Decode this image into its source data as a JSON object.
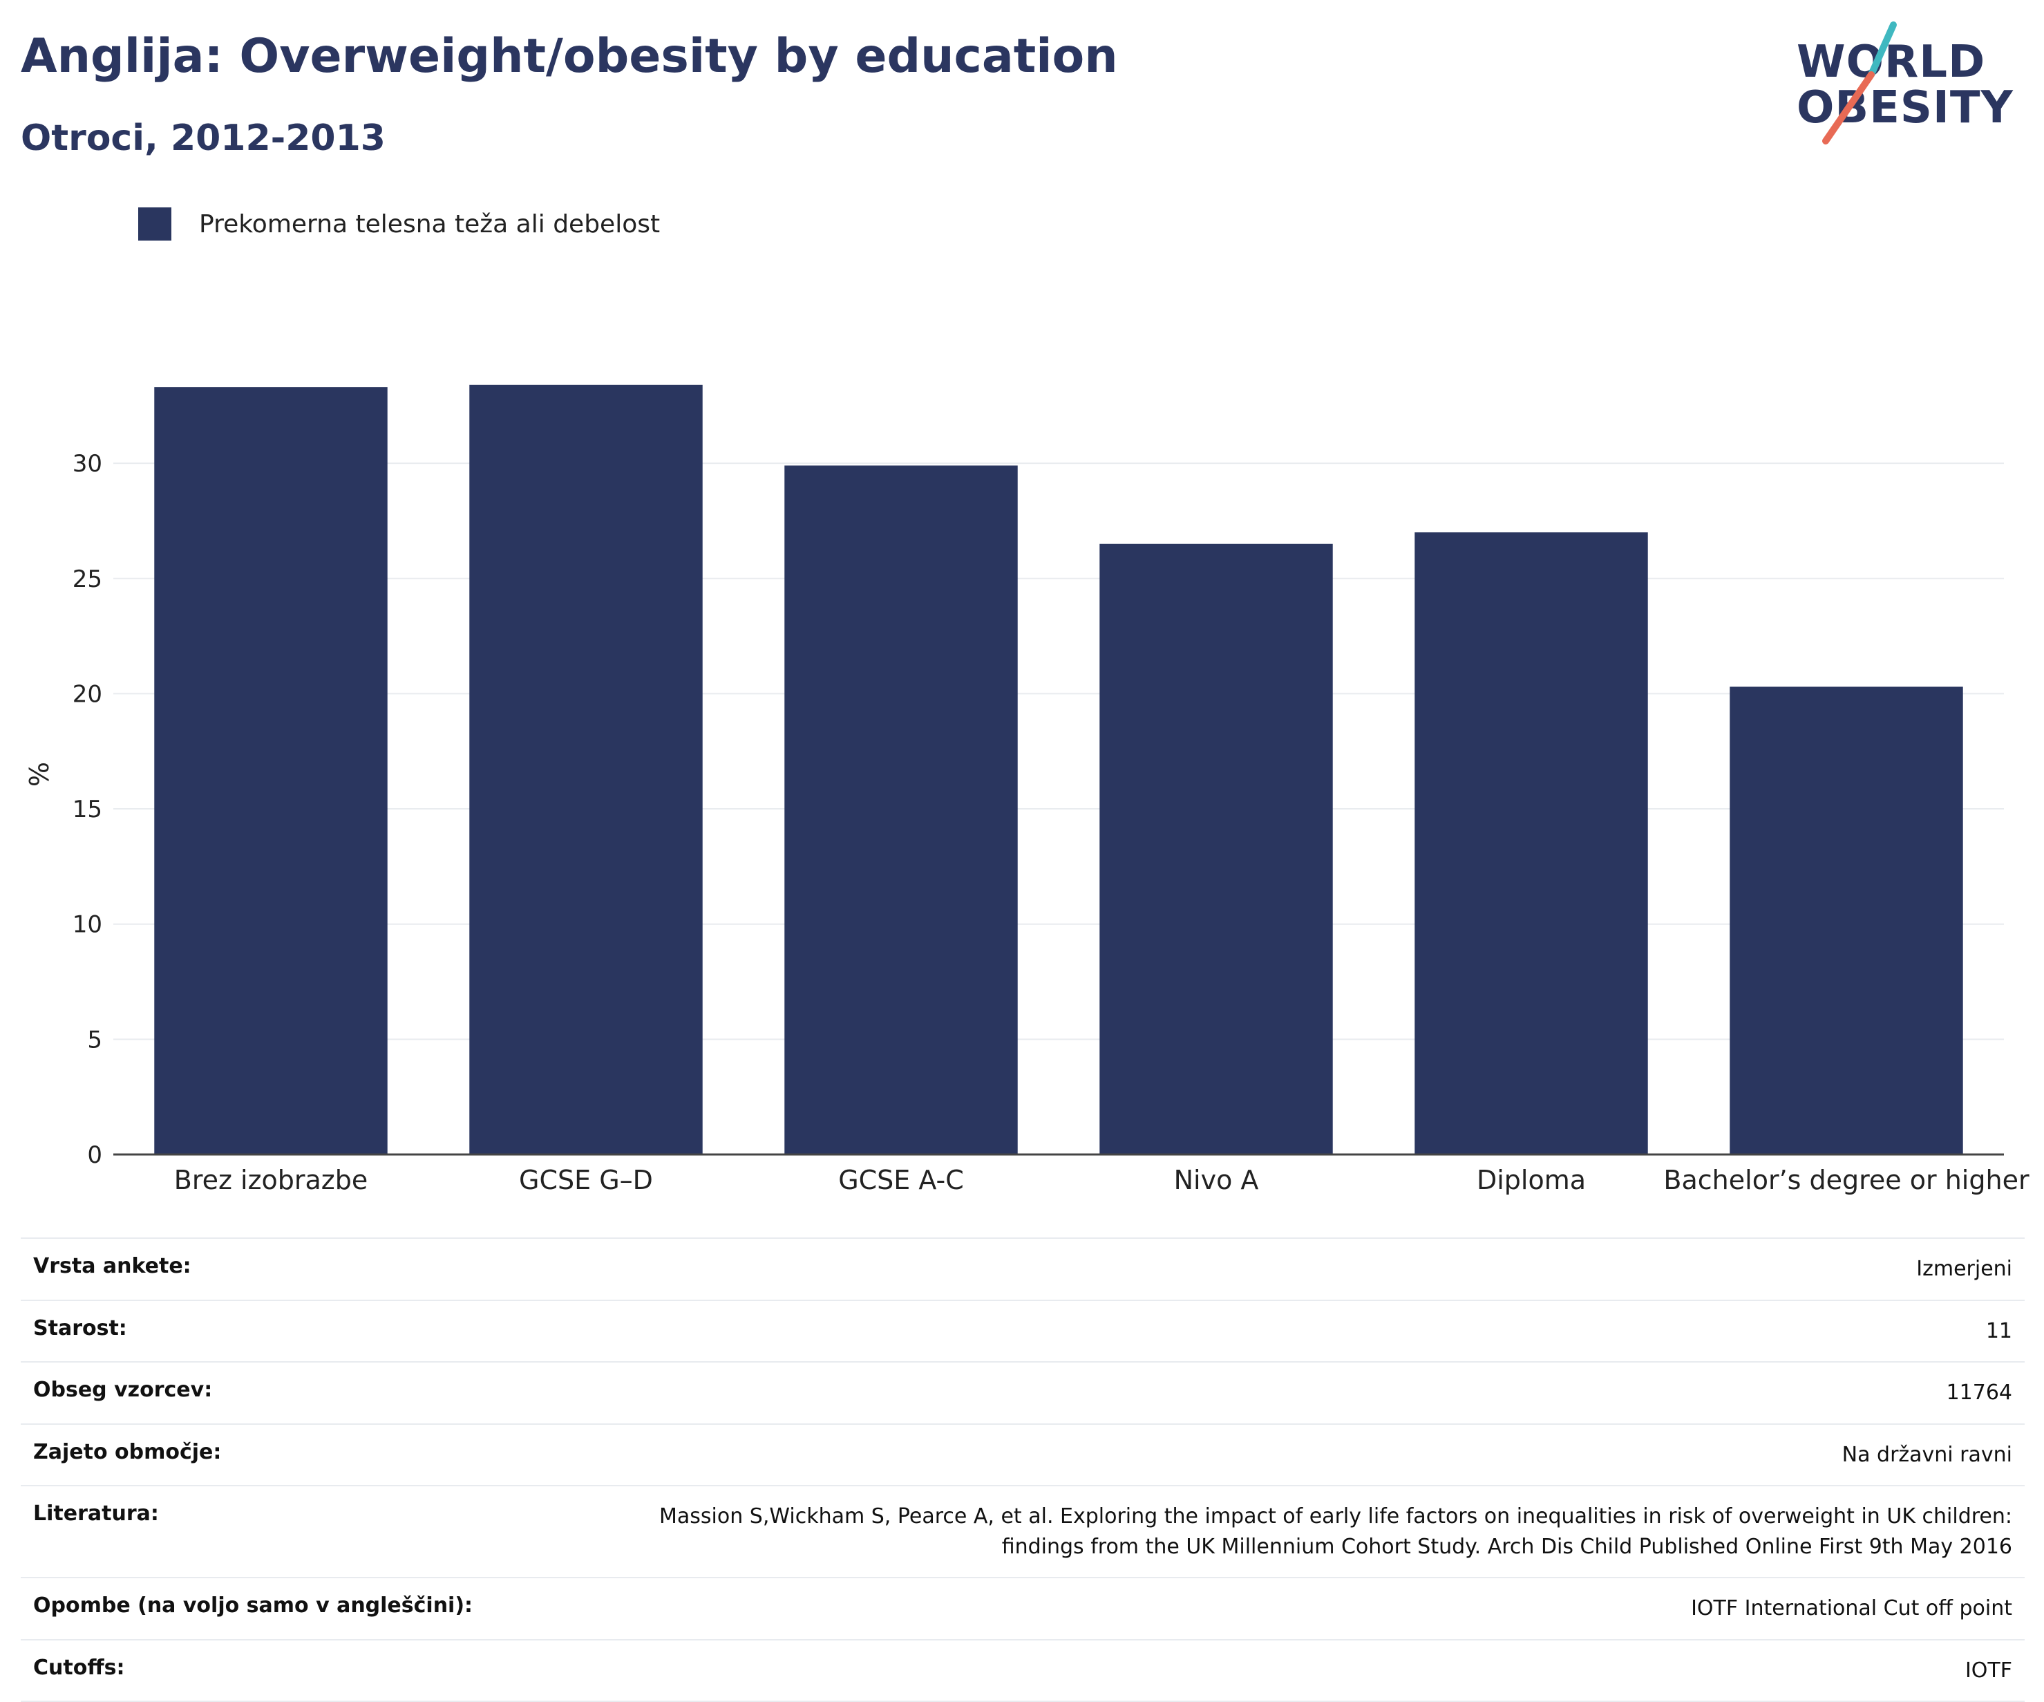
{
  "title": "Anglija: Overweight/obesity by education",
  "subtitle": "Otroci, 2012-2013",
  "logo": {
    "line1": "WORLD",
    "line2": "OBESITY"
  },
  "colors": {
    "bar": "#2a365f",
    "title": "#2b3660",
    "slash_teal": "#3fb8c0",
    "slash_coral": "#e86a55"
  },
  "chart_data": {
    "type": "bar",
    "categories": [
      "Brez izobrazbe",
      "GCSE G–D",
      "GCSE A-C",
      "Nivo A",
      "Diploma",
      "Bachelor’s degree or higher"
    ],
    "series": [
      {
        "name": "Prekomerna telesna teža ali debelost",
        "values": [
          33.3,
          33.4,
          29.9,
          26.5,
          27.0,
          20.3
        ]
      }
    ],
    "ylabel": "%",
    "xlabel": "",
    "ylim": [
      0,
      35
    ],
    "yticks": [
      0,
      5,
      10,
      15,
      20,
      25,
      30
    ],
    "grid": true,
    "legend_position": "top-left"
  },
  "info": [
    {
      "key": "Vrsta ankete:",
      "value": "Izmerjeni"
    },
    {
      "key": "Starost:",
      "value": "11"
    },
    {
      "key": "Obseg vzorcev:",
      "value": "11764"
    },
    {
      "key": "Zajeto območje:",
      "value": "Na državni ravni"
    },
    {
      "key": "Literatura:",
      "value_lines": [
        "Massion S,Wickham S, Pearce A, et al. Exploring the impact of early life factors on inequalities in risk of overweight in UK children:",
        "findings from the UK Millennium Cohort Study. Arch Dis Child Published Online First 9th May 2016"
      ]
    },
    {
      "key": "Opombe (na voljo samo v angleščini):",
      "value": "IOTF International Cut off point"
    },
    {
      "key": "Cutoffs:",
      "value": "IOTF"
    }
  ]
}
